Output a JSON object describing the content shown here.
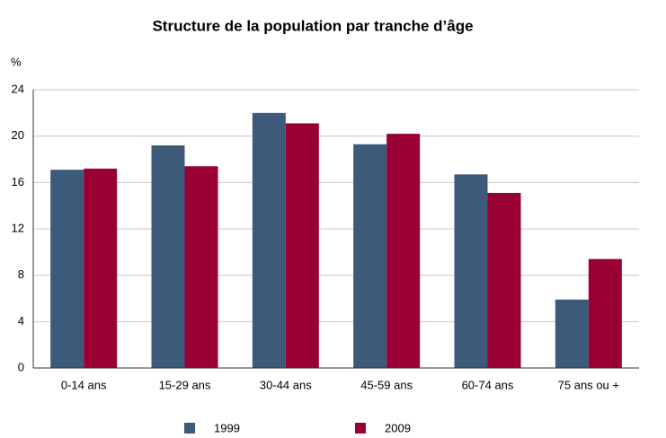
{
  "chart_data": {
    "type": "bar",
    "title": "Structure de la population par tranche d’âge",
    "y_label": "%",
    "categories": [
      "0-14 ans",
      "15-29 ans",
      "30-44 ans",
      "45-59 ans",
      "60-74 ans",
      "75 ans ou +"
    ],
    "series": [
      {
        "name": "1999",
        "color": "#3d5a7b",
        "values": [
          17.1,
          19.2,
          22.0,
          19.3,
          16.7,
          5.9
        ]
      },
      {
        "name": "2009",
        "color": "#990033",
        "values": [
          17.2,
          17.4,
          21.1,
          20.2,
          15.1,
          9.4
        ]
      }
    ],
    "ylim": [
      0,
      24
    ],
    "yticks": [
      0,
      4,
      8,
      12,
      16,
      20,
      24
    ],
    "grid": true
  }
}
